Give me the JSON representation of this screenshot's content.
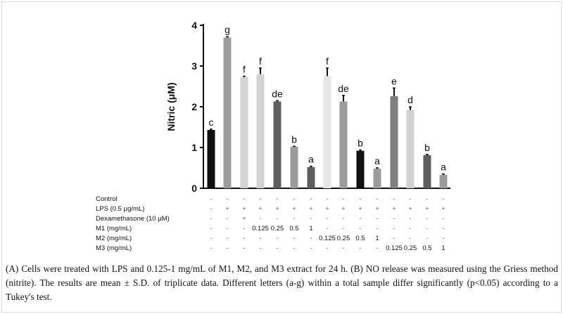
{
  "chart_data": {
    "type": "bar",
    "ylabel": "Nitric (μM)",
    "ylim": [
      0,
      4
    ],
    "yticks": [
      "0",
      "1",
      "2",
      "3",
      "4"
    ],
    "grid": false,
    "bars": [
      {
        "value": 1.43,
        "error": 0.02,
        "letter": "c",
        "color": "#111111"
      },
      {
        "value": 3.7,
        "error": 0.02,
        "letter": "g",
        "color": "#9c9c9f"
      },
      {
        "value": 2.73,
        "error": 0.02,
        "letter": "f",
        "color": "#d2d2d2"
      },
      {
        "value": 2.8,
        "error": 0.15,
        "letter": "f",
        "color": "#d2d2d2"
      },
      {
        "value": 2.13,
        "error": 0.02,
        "letter": "de",
        "color": "#5e5e5e"
      },
      {
        "value": 1.02,
        "error": 0.01,
        "letter": "b",
        "color": "#9c9c9f"
      },
      {
        "value": 0.52,
        "error": 0.02,
        "letter": "a",
        "color": "#5e5e5e"
      },
      {
        "value": 2.75,
        "error": 0.2,
        "letter": "f",
        "color": "#e6e6e6"
      },
      {
        "value": 2.13,
        "error": 0.15,
        "letter": "de",
        "color": "#9c9c9f"
      },
      {
        "value": 0.92,
        "error": 0.02,
        "letter": "b",
        "color": "#111111"
      },
      {
        "value": 0.48,
        "error": 0.02,
        "letter": "a",
        "color": "#9c9c9f"
      },
      {
        "value": 2.26,
        "error": 0.2,
        "letter": "e",
        "color": "#7e7e7e"
      },
      {
        "value": 1.92,
        "error": 0.08,
        "letter": "d",
        "color": "#d2d2d2"
      },
      {
        "value": 0.81,
        "error": 0.02,
        "letter": "b",
        "color": "#5e5e5e"
      },
      {
        "value": 0.33,
        "error": 0.02,
        "letter": "a",
        "color": "#9c9c9f"
      }
    ]
  },
  "conditions": [
    {
      "label": "Control",
      "cells": [
        "-",
        "-",
        "-",
        "-",
        "-",
        "-",
        "-",
        "-",
        "-",
        "-",
        "-",
        "-",
        "-",
        "-",
        "-"
      ]
    },
    {
      "label": "LPS (0.5 μg/mL)",
      "cells": [
        "-",
        "+",
        "+",
        "+",
        "+",
        "+",
        "+",
        "+",
        "+",
        "+",
        "+",
        "+",
        "+",
        "+",
        "+"
      ]
    },
    {
      "label": "Dexamethasone (10 μM)",
      "cells": [
        "-",
        "-",
        "+",
        "-",
        "-",
        "-",
        "-",
        "-",
        "-",
        "-",
        "-",
        "-",
        "-",
        "-",
        "-"
      ]
    },
    {
      "label": "M1 (mg/mL)",
      "cells": [
        "-",
        "-",
        "-",
        "0.125",
        "0.25",
        "0.5",
        "1",
        "-",
        "-",
        "-",
        "-",
        "-",
        "-",
        "-",
        "-"
      ]
    },
    {
      "label": "M2 (mg/mL)",
      "cells": [
        "-",
        "-",
        "-",
        "-",
        "-",
        "-",
        "-",
        "0.125",
        "0.25",
        "0.5",
        "1",
        "-",
        "-",
        "-",
        "-"
      ]
    },
    {
      "label": "M3 (mg/mL)",
      "cells": [
        "-",
        "-",
        "-",
        "-",
        "-",
        "-",
        "-",
        "-",
        "-",
        "-",
        "-",
        "0.125",
        "0.25",
        "0.5",
        "1"
      ]
    }
  ],
  "caption": "(A) Cells were treated with LPS and 0.125-1 mg/mL of M1, M2, and M3 extract for 24 h. (B) NO release was measured using the Griess method (nitrite). The results are mean ± S.D. of triplicate data. Different letters (a-g) within a total sample differ significantly (p<0.05) according to a Tukey's test."
}
